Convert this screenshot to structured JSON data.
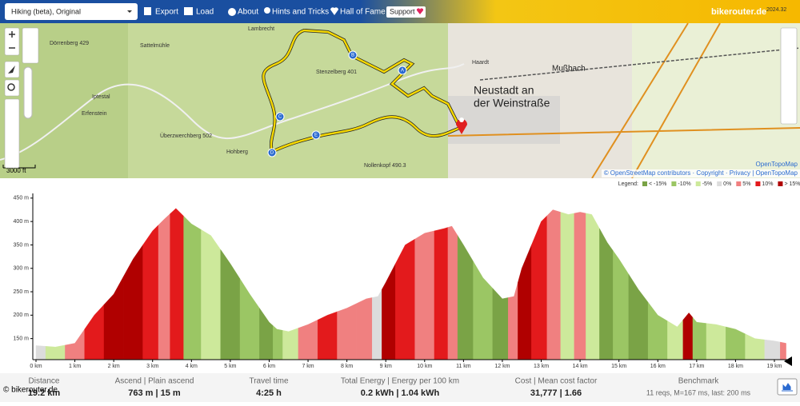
{
  "toolbar": {
    "profile": "Hiking (beta), Original",
    "items": [
      "Export",
      "Load",
      "About",
      "Hints and Tricks",
      "Hall of Fame"
    ],
    "support": "Support",
    "brand": "bikerouter.de",
    "version": "2024.32"
  },
  "map": {
    "labels": [
      "Lambrecht",
      "Dörrenberg 429",
      "Sattelmühle",
      "Iptestal",
      "Erfenstein",
      "Stenzelberg 401",
      "Überzwerchberg 502",
      "Hohberg",
      "Nollenkopf 490.3",
      "Neustadt an",
      "der Weinstraße",
      "Haardt",
      "Mußbach"
    ],
    "waypoints": [
      "A",
      "B",
      "C",
      "D",
      "E"
    ],
    "scale": "3000 ft",
    "tile_credit": "OpenTopoMap",
    "attribution": "© OpenStreetMap contributors · Copyright · Privacy | OpenTopoMap"
  },
  "chart_data": {
    "type": "area",
    "legend_title": "Legend:",
    "legend": [
      {
        "name": "< -15%",
        "color": "#7aa346"
      },
      {
        "name": "-10%",
        "color": "#9bc664"
      },
      {
        "name": "-5%",
        "color": "#cde99b"
      },
      {
        "name": "0%",
        "color": "#dcdcdc"
      },
      {
        "name": "5%",
        "color": "#f08080"
      },
      {
        "name": "10%",
        "color": "#e31a1c"
      },
      {
        "name": "> 15%",
        "color": "#b00000"
      }
    ],
    "x": [
      0,
      0.5,
      1,
      1.5,
      2,
      2.5,
      3,
      3.3,
      3.6,
      4,
      4.5,
      5,
      5.5,
      6,
      6.2,
      6.5,
      7,
      7.5,
      8,
      8.5,
      8.8,
      9,
      9.5,
      10,
      10.5,
      10.7,
      11,
      11.5,
      12,
      12.3,
      12.5,
      13,
      13.3,
      13.7,
      14,
      14.3,
      14.7,
      15,
      15.5,
      16,
      16.5,
      16.8,
      17,
      17.5,
      18,
      18.5,
      19,
      19.3
    ],
    "values": [
      135,
      132,
      140,
      200,
      245,
      320,
      380,
      405,
      428,
      395,
      370,
      310,
      245,
      185,
      170,
      165,
      180,
      200,
      215,
      235,
      240,
      270,
      350,
      375,
      385,
      390,
      350,
      280,
      235,
      240,
      300,
      400,
      425,
      415,
      420,
      415,
      355,
      320,
      255,
      200,
      175,
      205,
      185,
      180,
      170,
      150,
      145,
      140
    ],
    "colors": [
      "#dcdcdc",
      "#cde99b",
      "#f08080",
      "#e31a1c",
      "#b00000",
      "#b00000",
      "#e31a1c",
      "#f08080",
      "#e31a1c",
      "#9bc664",
      "#cde99b",
      "#7aa346",
      "#9bc664",
      "#7aa346",
      "#9bc664",
      "#cde99b",
      "#f08080",
      "#e31a1c",
      "#f08080",
      "#f08080",
      "#dcdcdc",
      "#b00000",
      "#e31a1c",
      "#f08080",
      "#e31a1c",
      "#f08080",
      "#7aa346",
      "#9bc664",
      "#7aa346",
      "#f08080",
      "#b00000",
      "#e31a1c",
      "#f08080",
      "#cde99b",
      "#f08080",
      "#cde99b",
      "#7aa346",
      "#9bc664",
      "#7aa346",
      "#9bc664",
      "#cde99b",
      "#b00000",
      "#9bc664",
      "#cde99b",
      "#9bc664",
      "#cde99b",
      "#dcdcdc",
      "#f08080"
    ],
    "xlim": [
      0,
      19.35
    ],
    "ylim": [
      105,
      460
    ],
    "xticks": [
      {
        "value": 0,
        "label": "0 km"
      },
      {
        "value": 1,
        "label": "1 km"
      },
      {
        "value": 2,
        "label": "2 km"
      },
      {
        "value": 3,
        "label": "3 km"
      },
      {
        "value": 4,
        "label": "4 km"
      },
      {
        "value": 5,
        "label": "5 km"
      },
      {
        "value": 6,
        "label": "6 km"
      },
      {
        "value": 7,
        "label": "7 km"
      },
      {
        "value": 8,
        "label": "8 km"
      },
      {
        "value": 9,
        "label": "9 km"
      },
      {
        "value": 10,
        "label": "10 km"
      },
      {
        "value": 11,
        "label": "11 km"
      },
      {
        "value": 12,
        "label": "12 km"
      },
      {
        "value": 13,
        "label": "13 km"
      },
      {
        "value": 14,
        "label": "14 km"
      },
      {
        "value": 15,
        "label": "15 km"
      },
      {
        "value": 16,
        "label": "16 km"
      },
      {
        "value": 17,
        "label": "17 km"
      },
      {
        "value": 18,
        "label": "18 km"
      },
      {
        "value": 19,
        "label": "19 km"
      }
    ],
    "yticks": [
      {
        "value": 150,
        "label": "150 m"
      },
      {
        "value": 200,
        "label": "200 m"
      },
      {
        "value": 250,
        "label": "250 m"
      },
      {
        "value": 300,
        "label": "300 m"
      },
      {
        "value": 350,
        "label": "350 m"
      },
      {
        "value": 400,
        "label": "400 m"
      },
      {
        "value": 450,
        "label": "450 m"
      }
    ]
  },
  "stats": [
    {
      "label": "Distance",
      "value": "19.2 km"
    },
    {
      "label": "Ascend | Plain ascend",
      "value": "763 m | 15 m"
    },
    {
      "label": "Travel time",
      "value": "4:25 h"
    },
    {
      "label": "Total Energy | Energy per 100 km",
      "value": "0.2 kWh | 1.04 kWh"
    },
    {
      "label": "Cost | Mean cost factor",
      "value": "31,777 | 1.66"
    },
    {
      "label": "Benchmark",
      "value": "11 reqs, M=167 ms, last: 200 ms"
    }
  ],
  "footer": "© bikerouter.de"
}
